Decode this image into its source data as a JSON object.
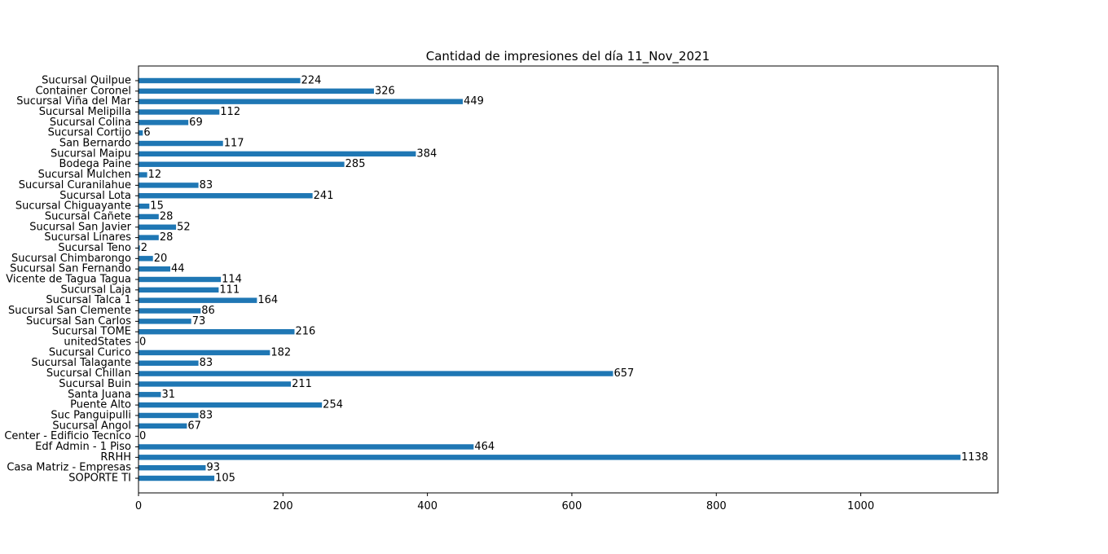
{
  "chart_data": {
    "type": "bar",
    "orientation": "horizontal",
    "title": "Cantidad de impresiones del día 11_Nov_2021",
    "xlabel": "",
    "ylabel": "",
    "xlim": [
      0,
      1190
    ],
    "xticks": [
      0,
      200,
      400,
      600,
      800,
      1000
    ],
    "grid": false,
    "bar_color": "#1f77b4",
    "categories": [
      "SOPORTE TI",
      "Casa Matriz - Empresas",
      "RRHH",
      "Edf Admin - 1 Piso",
      "Center - Edificio Tecnico",
      "Sucursal Angol",
      "Suc Panguipulli",
      "Puente Alto",
      "Santa Juana",
      "Sucursal Buin",
      "Sucursal Chillan",
      "Sucursal Talagante",
      "Sucursal Curico",
      "unitedStates",
      "Sucursal TOME",
      "Sucursal San Carlos",
      "Sucursal San Clemente",
      "Sucursal Talca 1",
      "Sucursal Laja",
      "Vicente de Tagua Tagua",
      "Sucursal San Fernando",
      "Sucursal Chimbarongo",
      "Sucursal Teno",
      "Sucursal Linares",
      "Sucursal San Javier",
      "Sucursal Cañete",
      "Sucursal Chiguayante",
      "Sucursal Lota",
      "Sucursal Curanilahue",
      "Sucursal Mulchen",
      "Bodega Paine",
      "Sucursal Maipu",
      "San Bernardo",
      "Sucursal Cortijo",
      "Sucursal Colina",
      "Sucursal Melipilla",
      "Sucursal Viña del Mar",
      "Container Coronel",
      "Sucursal Quilpue"
    ],
    "values": [
      105,
      93,
      1138,
      464,
      0,
      67,
      83,
      254,
      31,
      211,
      657,
      83,
      182,
      0,
      216,
      73,
      86,
      164,
      111,
      114,
      44,
      20,
      2,
      28,
      52,
      28,
      15,
      241,
      83,
      12,
      285,
      384,
      117,
      6,
      69,
      112,
      449,
      326,
      224
    ]
  }
}
